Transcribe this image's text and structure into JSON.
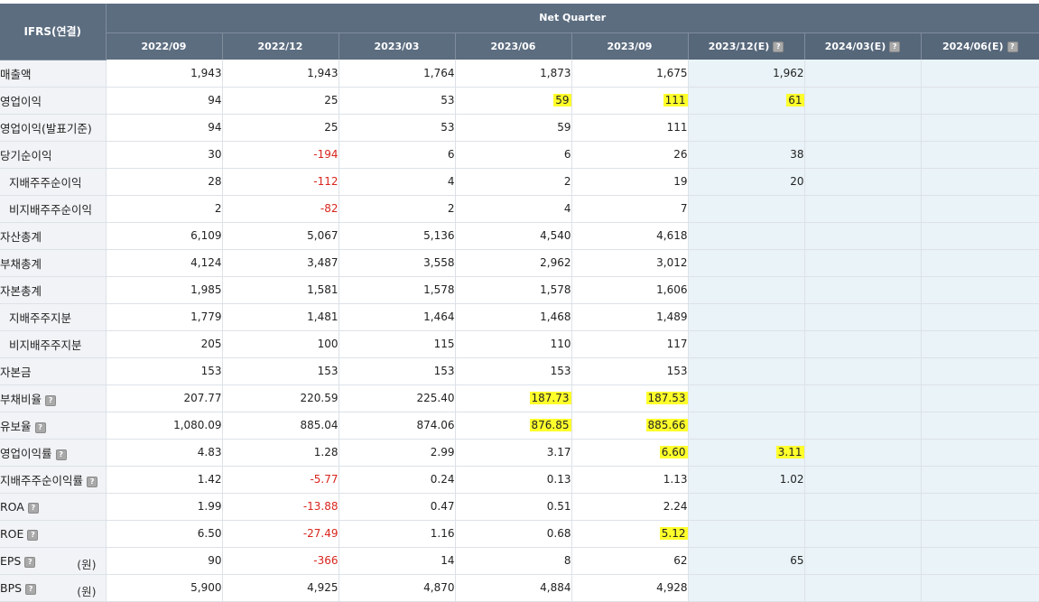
{
  "header": {
    "corner": "IFRS(연결)",
    "group": "Net Quarter",
    "columns": [
      {
        "label": "2022/09",
        "info": false,
        "est": false
      },
      {
        "label": "2022/12",
        "info": false,
        "est": false
      },
      {
        "label": "2023/03",
        "info": false,
        "est": false
      },
      {
        "label": "2023/06",
        "info": false,
        "est": false
      },
      {
        "label": "2023/09",
        "info": false,
        "est": false
      },
      {
        "label": "2023/12(E)",
        "info": true,
        "est": true
      },
      {
        "label": "2024/03(E)",
        "info": true,
        "est": true
      },
      {
        "label": "2024/06(E)",
        "info": true,
        "est": true
      }
    ],
    "info_glyph": "?"
  },
  "rows": [
    {
      "label": "매출액",
      "sub": false,
      "info": false,
      "unit": "",
      "values": [
        "1,943",
        "1,943",
        "1,764",
        "1,873",
        "1,675",
        "1,962",
        "",
        ""
      ],
      "neg": [],
      "hl": []
    },
    {
      "label": "영업이익",
      "sub": false,
      "info": false,
      "unit": "",
      "values": [
        "94",
        "25",
        "53",
        "59",
        "111",
        "61",
        "",
        ""
      ],
      "neg": [],
      "hl": [
        3,
        4,
        5
      ]
    },
    {
      "label": "영업이익(발표기준)",
      "sub": false,
      "info": false,
      "unit": "",
      "values": [
        "94",
        "25",
        "53",
        "59",
        "111",
        "",
        "",
        ""
      ],
      "neg": [],
      "hl": []
    },
    {
      "label": "당기순이익",
      "sub": false,
      "info": false,
      "unit": "",
      "values": [
        "30",
        "-194",
        "6",
        "6",
        "26",
        "38",
        "",
        ""
      ],
      "neg": [
        1
      ],
      "hl": []
    },
    {
      "label": "지배주주순이익",
      "sub": true,
      "info": false,
      "unit": "",
      "values": [
        "28",
        "-112",
        "4",
        "2",
        "19",
        "20",
        "",
        ""
      ],
      "neg": [
        1
      ],
      "hl": []
    },
    {
      "label": "비지배주주순이익",
      "sub": true,
      "info": false,
      "unit": "",
      "values": [
        "2",
        "-82",
        "2",
        "4",
        "7",
        "",
        "",
        ""
      ],
      "neg": [
        1
      ],
      "hl": []
    },
    {
      "label": "자산총계",
      "sub": false,
      "info": false,
      "unit": "",
      "values": [
        "6,109",
        "5,067",
        "5,136",
        "4,540",
        "4,618",
        "",
        "",
        ""
      ],
      "neg": [],
      "hl": []
    },
    {
      "label": "부채총계",
      "sub": false,
      "info": false,
      "unit": "",
      "values": [
        "4,124",
        "3,487",
        "3,558",
        "2,962",
        "3,012",
        "",
        "",
        ""
      ],
      "neg": [],
      "hl": []
    },
    {
      "label": "자본총계",
      "sub": false,
      "info": false,
      "unit": "",
      "values": [
        "1,985",
        "1,581",
        "1,578",
        "1,578",
        "1,606",
        "",
        "",
        ""
      ],
      "neg": [],
      "hl": []
    },
    {
      "label": "지배주주지분",
      "sub": true,
      "info": false,
      "unit": "",
      "values": [
        "1,779",
        "1,481",
        "1,464",
        "1,468",
        "1,489",
        "",
        "",
        ""
      ],
      "neg": [],
      "hl": []
    },
    {
      "label": "비지배주주지분",
      "sub": true,
      "info": false,
      "unit": "",
      "values": [
        "205",
        "100",
        "115",
        "110",
        "117",
        "",
        "",
        ""
      ],
      "neg": [],
      "hl": []
    },
    {
      "label": "자본금",
      "sub": false,
      "info": false,
      "unit": "",
      "values": [
        "153",
        "153",
        "153",
        "153",
        "153",
        "",
        "",
        ""
      ],
      "neg": [],
      "hl": []
    },
    {
      "label": "부채비율",
      "sub": false,
      "info": true,
      "unit": "",
      "values": [
        "207.77",
        "220.59",
        "225.40",
        "187.73",
        "187.53",
        "",
        "",
        ""
      ],
      "neg": [],
      "hl": [
        3,
        4
      ]
    },
    {
      "label": "유보율",
      "sub": false,
      "info": true,
      "unit": "",
      "values": [
        "1,080.09",
        "885.04",
        "874.06",
        "876.85",
        "885.66",
        "",
        "",
        ""
      ],
      "neg": [],
      "hl": [
        3,
        4
      ]
    },
    {
      "label": "영업이익률",
      "sub": false,
      "info": true,
      "unit": "",
      "values": [
        "4.83",
        "1.28",
        "2.99",
        "3.17",
        "6.60",
        "3.11",
        "",
        ""
      ],
      "neg": [],
      "hl": [
        4,
        5
      ]
    },
    {
      "label": "지배주주순이익률",
      "sub": false,
      "info": true,
      "unit": "",
      "values": [
        "1.42",
        "-5.77",
        "0.24",
        "0.13",
        "1.13",
        "1.02",
        "",
        ""
      ],
      "neg": [
        1
      ],
      "hl": []
    },
    {
      "label": "ROA",
      "sub": false,
      "info": true,
      "unit": "",
      "values": [
        "1.99",
        "-13.88",
        "0.47",
        "0.51",
        "2.24",
        "",
        "",
        ""
      ],
      "neg": [
        1
      ],
      "hl": []
    },
    {
      "label": "ROE",
      "sub": false,
      "info": true,
      "unit": "",
      "values": [
        "6.50",
        "-27.49",
        "1.16",
        "0.68",
        "5.12",
        "",
        "",
        ""
      ],
      "neg": [
        1
      ],
      "hl": [
        4
      ]
    },
    {
      "label": "EPS",
      "sub": false,
      "info": true,
      "unit": "(원)",
      "values": [
        "90",
        "-366",
        "14",
        "8",
        "62",
        "65",
        "",
        ""
      ],
      "neg": [
        1
      ],
      "hl": []
    },
    {
      "label": "BPS",
      "sub": false,
      "info": true,
      "unit": "(원)",
      "values": [
        "5,900",
        "4,925",
        "4,870",
        "4,884",
        "4,928",
        "",
        "",
        ""
      ],
      "neg": [],
      "hl": []
    }
  ],
  "colors": {
    "header_bg": "#5c6d80",
    "estimate_bg": "#e9f3f8",
    "negative": "#d9251d",
    "highlight": "#ffff2b"
  }
}
